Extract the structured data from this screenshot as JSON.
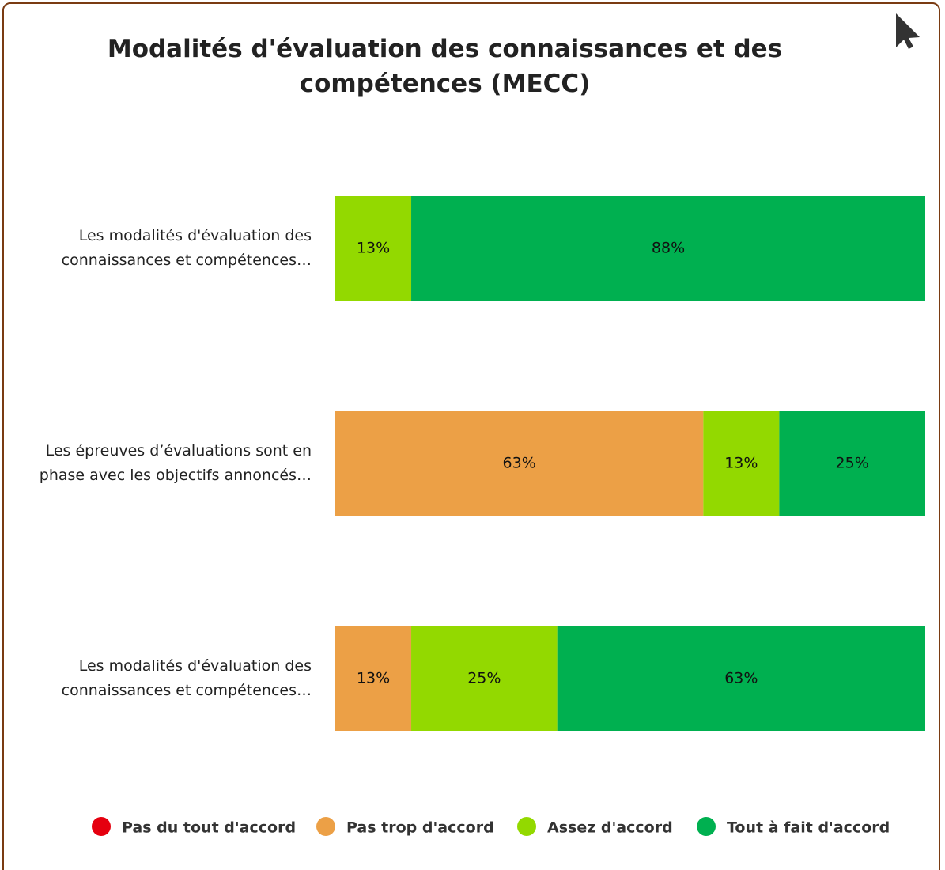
{
  "chart_data": {
    "type": "stacked-bar-horizontal",
    "title": "Modalités d'évaluation des connaissances et des compétences (MECC)",
    "categories": [
      "Les modalités d'évaluation des connaissances et compétences…",
      "Les épreuves d’évaluations sont en phase avec les objectifs annoncés…",
      "Les modalités d'évaluation des connaissances et compétences…"
    ],
    "series": [
      {
        "name": "Pas du tout d'accord",
        "color": "#e5000f",
        "values": [
          0,
          0,
          0
        ],
        "value_labels": [
          null,
          null,
          null
        ]
      },
      {
        "name": "Pas trop d'accord",
        "color": "#eca046",
        "values": [
          0,
          63,
          13
        ],
        "value_labels": [
          null,
          "63%",
          "13%"
        ]
      },
      {
        "name": "Assez d'accord",
        "color": "#93d900",
        "values": [
          13,
          13,
          25
        ],
        "value_labels": [
          "13%",
          "13%",
          "25%"
        ]
      },
      {
        "name": "Tout à fait d'accord",
        "color": "#00b050",
        "values": [
          88,
          25,
          63
        ],
        "value_labels": [
          "88%",
          "25%",
          "63%"
        ]
      }
    ],
    "legend": "bottom"
  }
}
